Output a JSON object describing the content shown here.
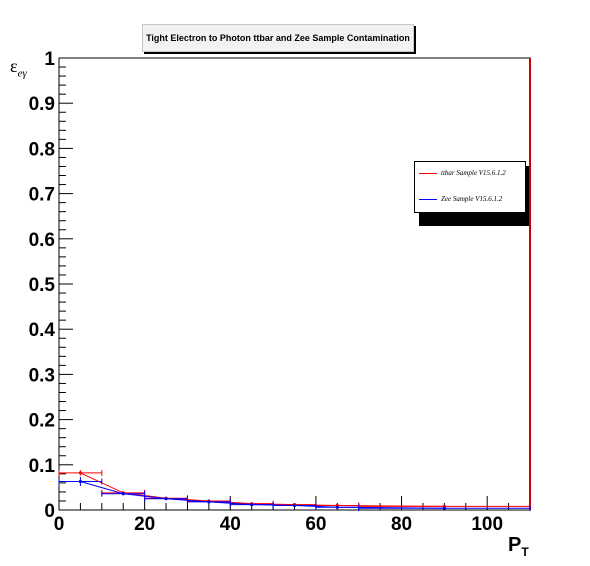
{
  "title": "Tight Electron to Photon ttbar and Zee Sample Contamination",
  "legend": [
    {
      "label": "ttbar Sample V15.6.1.2",
      "color": "#ff0000"
    },
    {
      "label": "Zee Sample V15.6.1.2",
      "color": "#0000ff"
    }
  ],
  "axes": {
    "ylabel_main": "ε",
    "ylabel_sub": "eγ",
    "xlabel_main": "P",
    "xlabel_sub": "T"
  },
  "chart_data": {
    "type": "scatter",
    "title": "Tight Electron to Photon ttbar and Zee Sample Contamination",
    "xlabel": "P_T",
    "ylabel": "ε_eγ",
    "xlim": [
      0,
      110
    ],
    "ylim": [
      0,
      1
    ],
    "xticks": [
      0,
      20,
      40,
      60,
      80,
      100
    ],
    "yticks": [
      0,
      0.1,
      0.2,
      0.3,
      0.4,
      0.5,
      0.6,
      0.7,
      0.8,
      0.9,
      1
    ],
    "ytick_labels": [
      "0",
      "0.1",
      "0.2",
      "0.3",
      "0.4",
      "0.5",
      "0.6",
      "0.7",
      "0.8",
      "0.9",
      "1"
    ],
    "xtick_labels": [
      "0",
      "20",
      "40",
      "60",
      "80",
      "100"
    ],
    "grid": false,
    "legend_position": "right",
    "series": [
      {
        "name": "ttbar Sample V15.6.1.2",
        "color": "#ff0000",
        "points": [
          {
            "x": 5,
            "y": 0.082,
            "xerr": 5,
            "yerr": 0.006
          },
          {
            "x": 15,
            "y": 0.038,
            "xerr": 5,
            "yerr": 0.003
          },
          {
            "x": 25,
            "y": 0.026,
            "xerr": 5,
            "yerr": 0.002
          },
          {
            "x": 35,
            "y": 0.02,
            "xerr": 5,
            "yerr": 0.002
          },
          {
            "x": 45,
            "y": 0.014,
            "xerr": 5,
            "yerr": 0.002
          },
          {
            "x": 55,
            "y": 0.012,
            "xerr": 5,
            "yerr": 0.002
          },
          {
            "x": 65,
            "y": 0.01,
            "xerr": 5,
            "yerr": 0.002
          },
          {
            "x": 90,
            "y": 0.008,
            "xerr": 20,
            "yerr": 0.002
          }
        ]
      },
      {
        "name": "Zee Sample V15.6.1.2",
        "color": "#0000ff",
        "points": [
          {
            "x": 5,
            "y": 0.063,
            "xerr": 5,
            "yerr": 0.01
          },
          {
            "x": 15,
            "y": 0.036,
            "xerr": 5,
            "yerr": 0.003
          },
          {
            "x": 25,
            "y": 0.025,
            "xerr": 5,
            "yerr": 0.002
          },
          {
            "x": 35,
            "y": 0.018,
            "xerr": 5,
            "yerr": 0.002
          },
          {
            "x": 45,
            "y": 0.012,
            "xerr": 5,
            "yerr": 0.002
          },
          {
            "x": 55,
            "y": 0.01,
            "xerr": 5,
            "yerr": 0.003
          },
          {
            "x": 65,
            "y": 0.006,
            "xerr": 5,
            "yerr": 0.002
          },
          {
            "x": 90,
            "y": 0.004,
            "xerr": 20,
            "yerr": 0.002
          }
        ]
      }
    ]
  }
}
